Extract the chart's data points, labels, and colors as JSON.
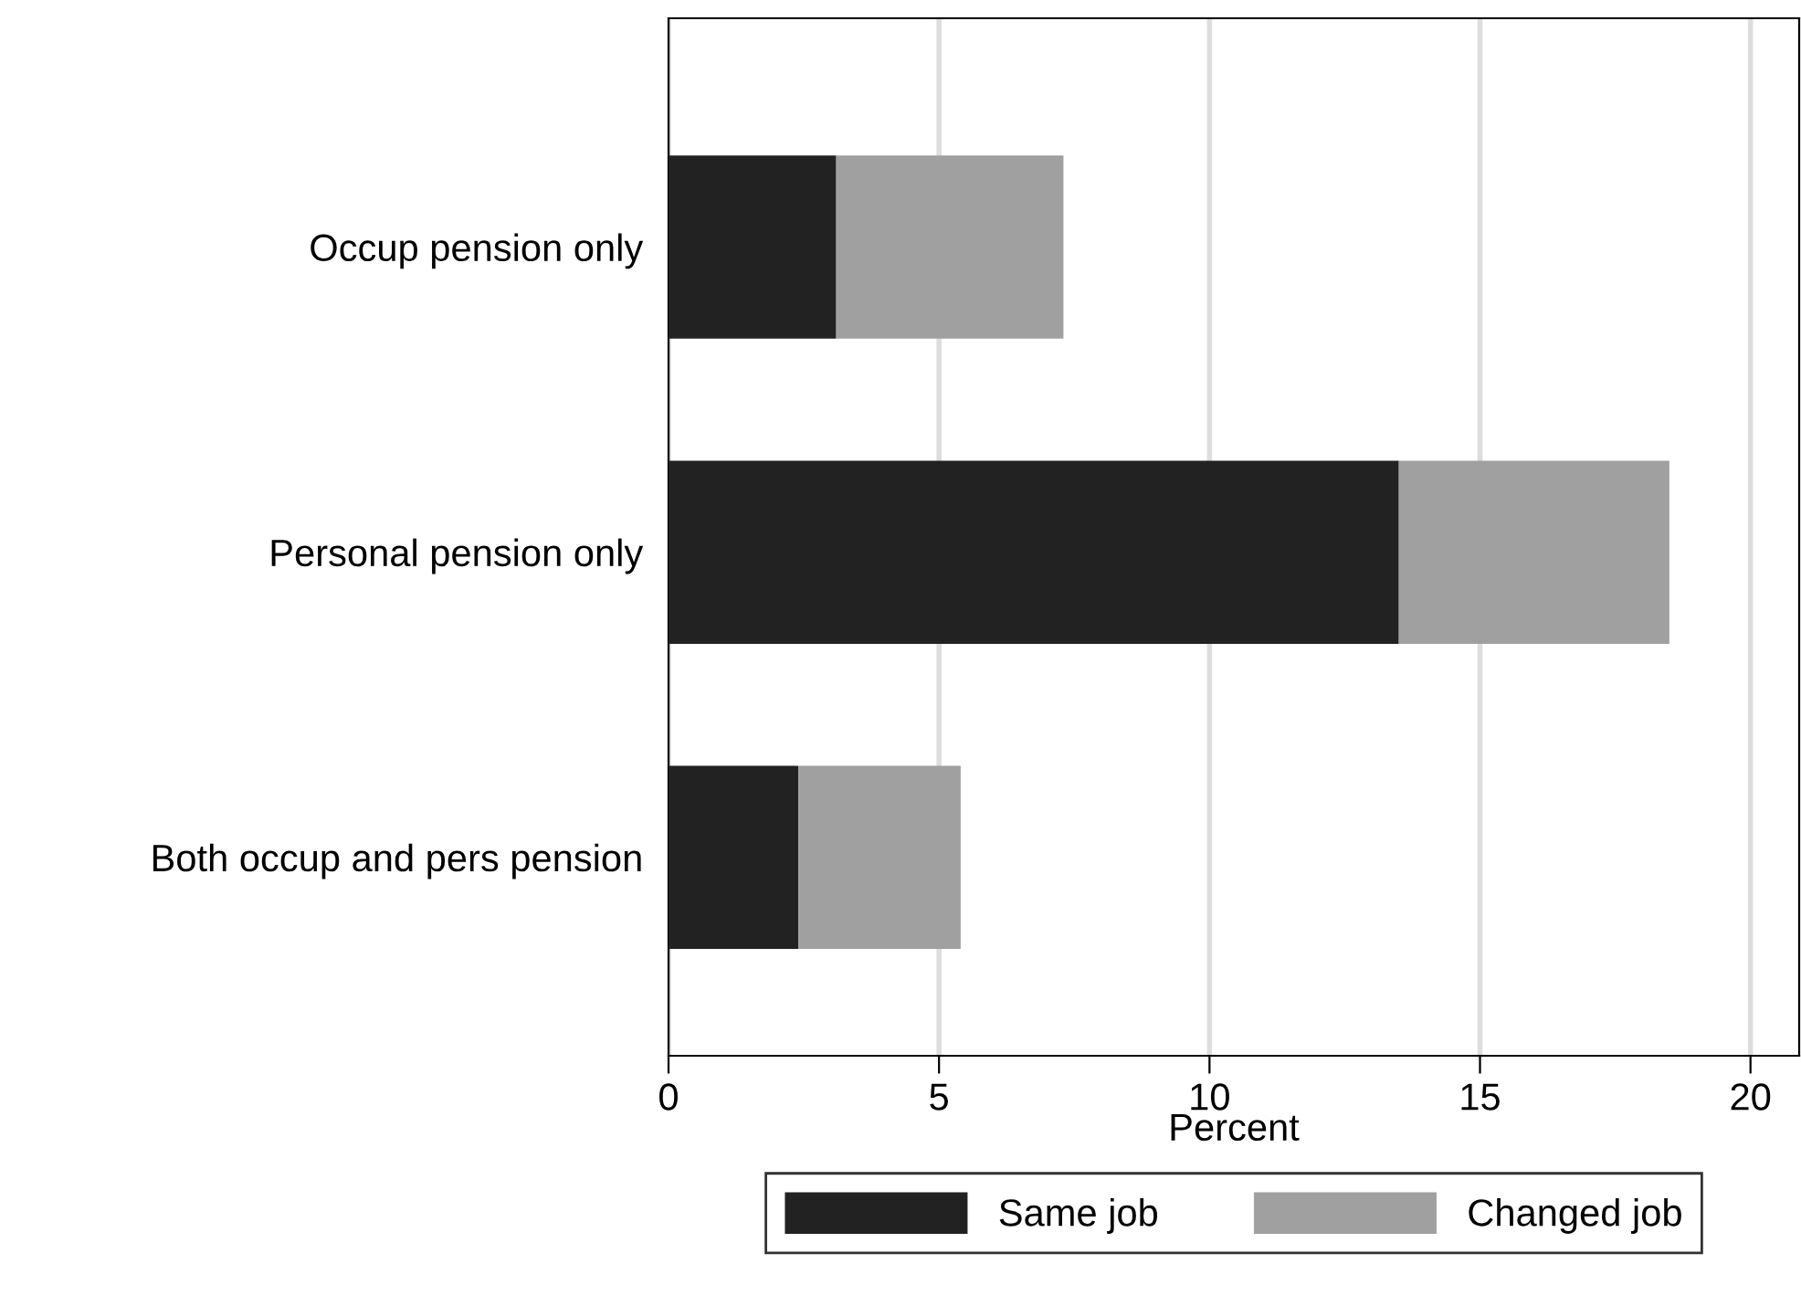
{
  "chart_data": {
    "type": "bar",
    "orientation": "horizontal",
    "stacked": true,
    "categories": [
      "Occup pension only",
      "Personal pension only",
      "Both occup and pers pension"
    ],
    "series": [
      {
        "name": "Same job",
        "color": "#222222",
        "values": [
          3.1,
          13.5,
          2.4
        ]
      },
      {
        "name": "Changed job",
        "color": "#a0a0a0",
        "values": [
          4.2,
          5.0,
          3.0
        ]
      }
    ],
    "xlabel": "Percent",
    "xlim": [
      0,
      20.9
    ],
    "xticks": [
      0,
      5,
      10,
      15,
      20
    ],
    "grid": "x",
    "legend": "bottom"
  }
}
